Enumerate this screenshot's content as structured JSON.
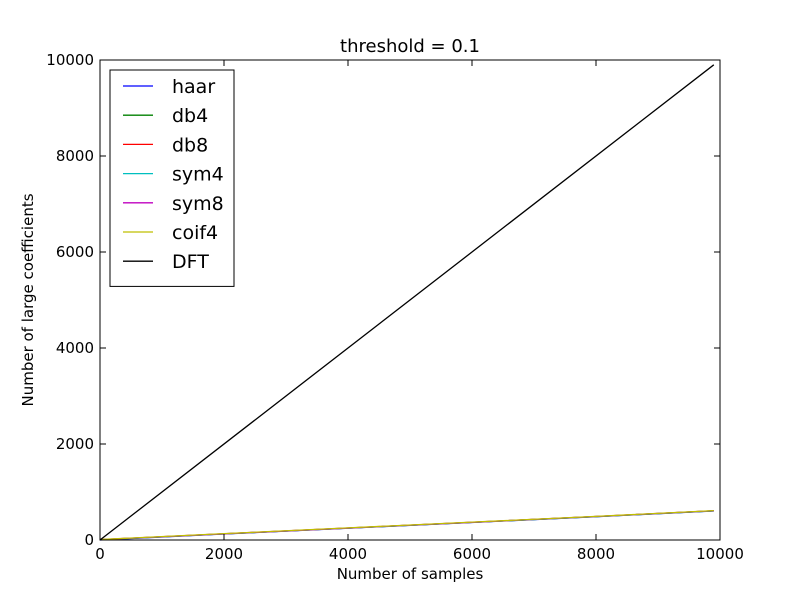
{
  "chart_data": {
    "type": "line",
    "title": "threshold = 0.1",
    "xlabel": "Number of samples",
    "ylabel": "Number of large coefficients",
    "xlim": [
      0,
      10000
    ],
    "ylim": [
      0,
      10000
    ],
    "xticks": [
      0,
      2000,
      4000,
      6000,
      8000,
      10000
    ],
    "yticks": [
      0,
      2000,
      4000,
      6000,
      8000,
      10000
    ],
    "xtick_labels": [
      "0",
      "2000",
      "4000",
      "6000",
      "8000",
      "10000"
    ],
    "ytick_labels": [
      "0",
      "2000",
      "4000",
      "6000",
      "8000",
      "10000"
    ],
    "grid": false,
    "legend_position": "top-left",
    "series": [
      {
        "name": "haar",
        "color": "#0000ff",
        "x": [
          0,
          2000,
          4000,
          6000,
          8000,
          9900
        ],
        "y": [
          0,
          125,
          245,
          365,
          485,
          605
        ]
      },
      {
        "name": "db4",
        "color": "#008000",
        "x": [
          0,
          2000,
          4000,
          6000,
          8000,
          9900
        ],
        "y": [
          5,
          128,
          248,
          368,
          488,
          608
        ]
      },
      {
        "name": "db8",
        "color": "#ff0000",
        "x": [
          0,
          2000,
          4000,
          6000,
          8000,
          9900
        ],
        "y": [
          8,
          130,
          250,
          370,
          490,
          610
        ]
      },
      {
        "name": "sym4",
        "color": "#00bfbf",
        "x": [
          0,
          2000,
          4000,
          6000,
          8000,
          9900
        ],
        "y": [
          5,
          127,
          247,
          367,
          487,
          607
        ]
      },
      {
        "name": "sym8",
        "color": "#bf00bf",
        "x": [
          0,
          2000,
          4000,
          6000,
          8000,
          9900
        ],
        "y": [
          8,
          129,
          249,
          369,
          489,
          609
        ]
      },
      {
        "name": "coif4",
        "color": "#bfbf00",
        "x": [
          0,
          2000,
          4000,
          6000,
          8000,
          9900
        ],
        "y": [
          10,
          132,
          252,
          372,
          492,
          612
        ]
      },
      {
        "name": "DFT",
        "color": "#000000",
        "x": [
          0,
          9900
        ],
        "y": [
          0,
          9900
        ]
      }
    ]
  }
}
